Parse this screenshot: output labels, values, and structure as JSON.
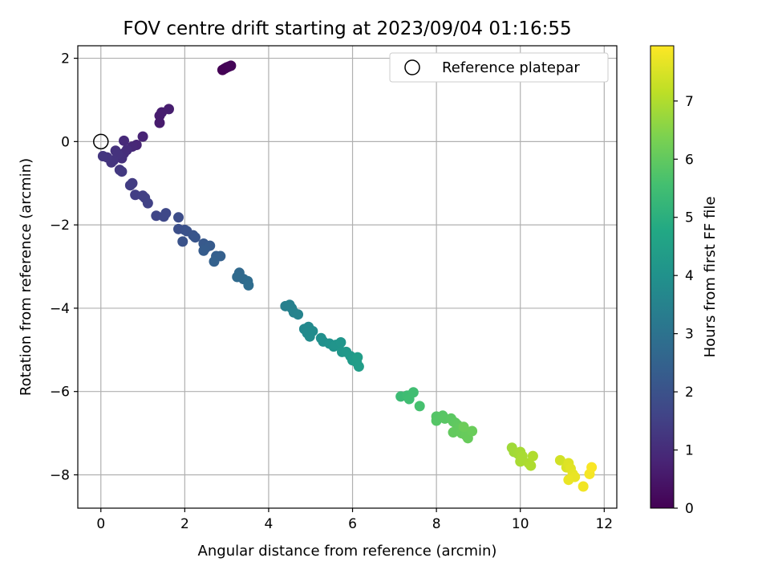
{
  "chart_data": {
    "type": "scatter",
    "title": "FOV centre drift starting at 2023/09/04 01:16:55",
    "xlabel": "Angular distance from reference (arcmin)",
    "ylabel": "Rotation from reference (arcmin)",
    "xlim": [
      -0.55,
      12.3
    ],
    "ylim": [
      -8.8,
      2.3
    ],
    "xticks": [
      0,
      2,
      4,
      6,
      8,
      10,
      12
    ],
    "yticks": [
      2,
      0,
      -2,
      -4,
      -6,
      -8
    ],
    "grid": true,
    "legend": {
      "placement": "top-right",
      "entries": [
        "Reference platepar"
      ]
    },
    "reference_point": {
      "x": 0,
      "y": 0
    },
    "colorbar": {
      "label": "Hours from first FF file",
      "colormap": "viridis",
      "range": [
        0,
        7.95
      ],
      "ticks": [
        0,
        1,
        2,
        3,
        4,
        5,
        6,
        7
      ]
    },
    "points": [
      {
        "x": 2.9,
        "y": 1.72,
        "h": 0.0
      },
      {
        "x": 2.95,
        "y": 1.75,
        "h": 0.02
      },
      {
        "x": 3.0,
        "y": 1.78,
        "h": 0.04
      },
      {
        "x": 3.05,
        "y": 1.8,
        "h": 0.06
      },
      {
        "x": 3.1,
        "y": 1.82,
        "h": 0.08
      },
      {
        "x": 1.4,
        "y": 0.45,
        "h": 0.6
      },
      {
        "x": 1.4,
        "y": 0.62,
        "h": 0.62
      },
      {
        "x": 1.45,
        "y": 0.7,
        "h": 0.64
      },
      {
        "x": 1.62,
        "y": 0.78,
        "h": 0.66
      },
      {
        "x": 1.0,
        "y": 0.12,
        "h": 0.8
      },
      {
        "x": 0.85,
        "y": -0.08,
        "h": 0.85
      },
      {
        "x": 0.75,
        "y": -0.12,
        "h": 0.9
      },
      {
        "x": 0.55,
        "y": 0.02,
        "h": 0.95
      },
      {
        "x": 0.62,
        "y": -0.2,
        "h": 1.0
      },
      {
        "x": 0.55,
        "y": -0.28,
        "h": 1.05
      },
      {
        "x": 0.5,
        "y": -0.4,
        "h": 1.1
      },
      {
        "x": 0.35,
        "y": -0.22,
        "h": 1.12
      },
      {
        "x": 0.4,
        "y": -0.3,
        "h": 1.15
      },
      {
        "x": 0.3,
        "y": -0.45,
        "h": 1.18
      },
      {
        "x": 0.25,
        "y": -0.5,
        "h": 1.2
      },
      {
        "x": 0.15,
        "y": -0.38,
        "h": 1.22
      },
      {
        "x": 0.05,
        "y": -0.35,
        "h": 1.25
      },
      {
        "x": 0.45,
        "y": -0.68,
        "h": 1.3
      },
      {
        "x": 0.5,
        "y": -0.72,
        "h": 1.32
      },
      {
        "x": 0.75,
        "y": -1.0,
        "h": 1.4
      },
      {
        "x": 0.7,
        "y": -1.05,
        "h": 1.42
      },
      {
        "x": 0.82,
        "y": -1.28,
        "h": 1.45
      },
      {
        "x": 1.0,
        "y": -1.3,
        "h": 1.5
      },
      {
        "x": 1.05,
        "y": -1.35,
        "h": 1.52
      },
      {
        "x": 1.12,
        "y": -1.48,
        "h": 1.55
      },
      {
        "x": 1.32,
        "y": -1.78,
        "h": 1.65
      },
      {
        "x": 1.5,
        "y": -1.8,
        "h": 1.7
      },
      {
        "x": 1.55,
        "y": -1.72,
        "h": 1.72
      },
      {
        "x": 1.85,
        "y": -1.82,
        "h": 1.85
      },
      {
        "x": 1.85,
        "y": -2.1,
        "h": 1.9
      },
      {
        "x": 2.0,
        "y": -2.12,
        "h": 1.95
      },
      {
        "x": 2.05,
        "y": -2.15,
        "h": 2.0
      },
      {
        "x": 1.95,
        "y": -2.4,
        "h": 2.02
      },
      {
        "x": 2.2,
        "y": -2.25,
        "h": 2.05
      },
      {
        "x": 2.25,
        "y": -2.3,
        "h": 2.1
      },
      {
        "x": 2.45,
        "y": -2.45,
        "h": 2.2
      },
      {
        "x": 2.5,
        "y": -2.55,
        "h": 2.25
      },
      {
        "x": 2.6,
        "y": -2.5,
        "h": 2.28
      },
      {
        "x": 2.45,
        "y": -2.62,
        "h": 2.3
      },
      {
        "x": 2.75,
        "y": -2.75,
        "h": 2.4
      },
      {
        "x": 2.85,
        "y": -2.75,
        "h": 2.42
      },
      {
        "x": 2.7,
        "y": -2.88,
        "h": 2.45
      },
      {
        "x": 3.3,
        "y": -3.15,
        "h": 2.7
      },
      {
        "x": 3.25,
        "y": -3.25,
        "h": 2.72
      },
      {
        "x": 3.4,
        "y": -3.3,
        "h": 2.75
      },
      {
        "x": 3.5,
        "y": -3.35,
        "h": 2.8
      },
      {
        "x": 3.52,
        "y": -3.45,
        "h": 2.82
      },
      {
        "x": 4.4,
        "y": -3.95,
        "h": 3.4
      },
      {
        "x": 4.5,
        "y": -3.92,
        "h": 3.42
      },
      {
        "x": 4.55,
        "y": -4.0,
        "h": 3.45
      },
      {
        "x": 4.6,
        "y": -4.1,
        "h": 3.5
      },
      {
        "x": 4.7,
        "y": -4.15,
        "h": 3.52
      },
      {
        "x": 4.85,
        "y": -4.5,
        "h": 3.7
      },
      {
        "x": 4.95,
        "y": -4.45,
        "h": 3.72
      },
      {
        "x": 4.92,
        "y": -4.6,
        "h": 3.75
      },
      {
        "x": 4.98,
        "y": -4.68,
        "h": 3.78
      },
      {
        "x": 5.05,
        "y": -4.55,
        "h": 3.8
      },
      {
        "x": 5.25,
        "y": -4.72,
        "h": 3.9
      },
      {
        "x": 5.3,
        "y": -4.8,
        "h": 3.95
      },
      {
        "x": 5.45,
        "y": -4.85,
        "h": 4.0
      },
      {
        "x": 5.55,
        "y": -4.92,
        "h": 4.05
      },
      {
        "x": 5.6,
        "y": -4.88,
        "h": 4.08
      },
      {
        "x": 5.72,
        "y": -4.82,
        "h": 4.1
      },
      {
        "x": 5.75,
        "y": -5.05,
        "h": 4.15
      },
      {
        "x": 5.85,
        "y": -5.05,
        "h": 4.2
      },
      {
        "x": 5.95,
        "y": -5.15,
        "h": 4.25
      },
      {
        "x": 6.0,
        "y": -5.25,
        "h": 4.3
      },
      {
        "x": 6.1,
        "y": -5.3,
        "h": 4.35
      },
      {
        "x": 6.12,
        "y": -5.18,
        "h": 4.38
      },
      {
        "x": 6.15,
        "y": -5.4,
        "h": 4.4
      },
      {
        "x": 7.15,
        "y": -6.12,
        "h": 5.4
      },
      {
        "x": 7.3,
        "y": -6.1,
        "h": 5.45
      },
      {
        "x": 7.35,
        "y": -6.18,
        "h": 5.48
      },
      {
        "x": 7.45,
        "y": -6.02,
        "h": 5.5
      },
      {
        "x": 7.6,
        "y": -6.35,
        "h": 5.6
      },
      {
        "x": 8.0,
        "y": -6.6,
        "h": 5.8
      },
      {
        "x": 8.0,
        "y": -6.7,
        "h": 5.82
      },
      {
        "x": 8.15,
        "y": -6.58,
        "h": 5.85
      },
      {
        "x": 8.2,
        "y": -6.65,
        "h": 5.88
      },
      {
        "x": 8.35,
        "y": -6.65,
        "h": 5.9
      },
      {
        "x": 8.4,
        "y": -6.72,
        "h": 5.92
      },
      {
        "x": 8.45,
        "y": -6.75,
        "h": 5.95
      },
      {
        "x": 8.5,
        "y": -6.8,
        "h": 5.98
      },
      {
        "x": 8.55,
        "y": -6.88,
        "h": 6.0
      },
      {
        "x": 8.4,
        "y": -6.98,
        "h": 6.02
      },
      {
        "x": 8.6,
        "y": -7.0,
        "h": 6.05
      },
      {
        "x": 8.7,
        "y": -7.05,
        "h": 6.08
      },
      {
        "x": 8.75,
        "y": -7.12,
        "h": 6.1
      },
      {
        "x": 8.85,
        "y": -6.95,
        "h": 6.12
      },
      {
        "x": 8.65,
        "y": -6.85,
        "h": 6.15
      },
      {
        "x": 9.8,
        "y": -7.35,
        "h": 6.8
      },
      {
        "x": 9.85,
        "y": -7.45,
        "h": 6.82
      },
      {
        "x": 9.95,
        "y": -7.5,
        "h": 6.85
      },
      {
        "x": 10.0,
        "y": -7.45,
        "h": 6.88
      },
      {
        "x": 10.05,
        "y": -7.55,
        "h": 6.9
      },
      {
        "x": 10.0,
        "y": -7.68,
        "h": 6.92
      },
      {
        "x": 10.2,
        "y": -7.72,
        "h": 6.95
      },
      {
        "x": 10.25,
        "y": -7.78,
        "h": 6.98
      },
      {
        "x": 10.3,
        "y": -7.55,
        "h": 7.0
      },
      {
        "x": 10.95,
        "y": -7.65,
        "h": 7.4
      },
      {
        "x": 11.1,
        "y": -7.82,
        "h": 7.5
      },
      {
        "x": 11.15,
        "y": -7.72,
        "h": 7.55
      },
      {
        "x": 11.2,
        "y": -7.85,
        "h": 7.6
      },
      {
        "x": 11.25,
        "y": -7.98,
        "h": 7.65
      },
      {
        "x": 11.3,
        "y": -8.05,
        "h": 7.7
      },
      {
        "x": 11.15,
        "y": -8.12,
        "h": 7.72
      },
      {
        "x": 11.5,
        "y": -8.28,
        "h": 7.8
      },
      {
        "x": 11.65,
        "y": -7.98,
        "h": 7.85
      },
      {
        "x": 11.7,
        "y": -7.82,
        "h": 7.9
      }
    ]
  }
}
